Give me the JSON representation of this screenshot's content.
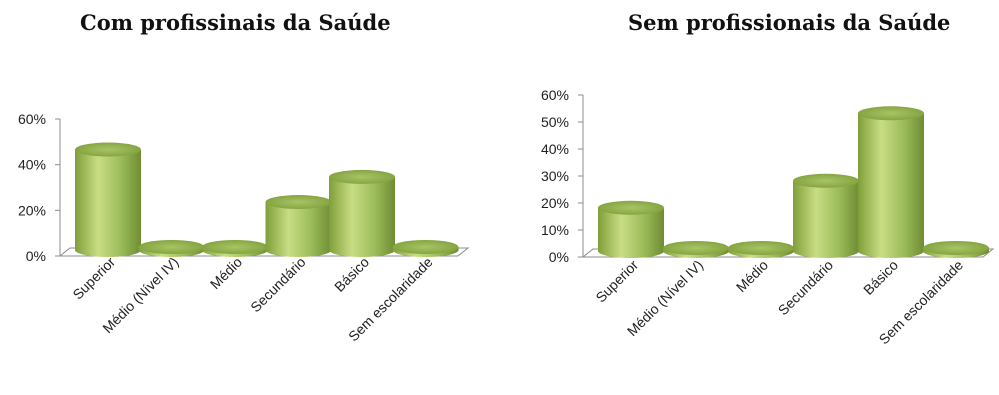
{
  "chart_data": [
    {
      "type": "bar",
      "title": "Com profissinais da Saúde",
      "categories": [
        "Superior",
        "Médio (Nível IV)",
        "Médio",
        "Secundário",
        "Básico",
        "Sem escolaridade"
      ],
      "values": [
        0.44,
        0.0,
        0.0,
        0.21,
        0.32,
        0.0
      ],
      "y_ticks": [
        "0%",
        "20%",
        "40%",
        "60%"
      ],
      "ylim": [
        0,
        0.6
      ],
      "grid": false,
      "xlabel": "",
      "ylabel": ""
    },
    {
      "type": "bar",
      "title": "Sem profissionais da Saúde",
      "categories": [
        "Superior",
        "Médio (Nível IV)",
        "Médio",
        "Secundário",
        "Básico",
        "Sem escolaridade"
      ],
      "values": [
        0.16,
        0.01,
        0.01,
        0.26,
        0.51,
        0.01
      ],
      "y_ticks": [
        "0%",
        "10%",
        "20%",
        "30%",
        "40%",
        "50%",
        "60%"
      ],
      "ylim": [
        0,
        0.6
      ],
      "grid": false,
      "xlabel": "",
      "ylabel": ""
    }
  ],
  "colors": {
    "bar_light": "#c9dd84",
    "bar_mid": "#9bbb59",
    "bar_dark": "#6f8c33",
    "axis": "#8c8c8c"
  }
}
